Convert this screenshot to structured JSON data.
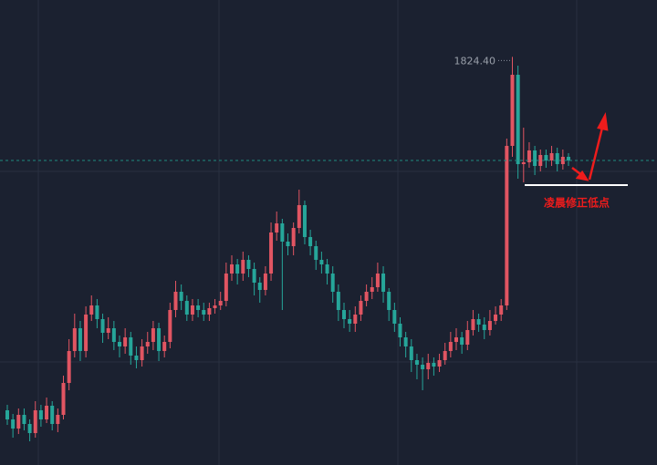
{
  "chart_data": {
    "type": "candlestick",
    "up_color": "#e15562",
    "down_color": "#26a69a",
    "ylim": [
      1712.5,
      1840
    ],
    "open": [
      1727.5,
      1725,
      1722.5,
      1726.25,
      1723.75,
      1721.25,
      1727.5,
      1725,
      1728.75,
      1723.75,
      1726.25,
      1735,
      1743.75,
      1750,
      1743.75,
      1753.75,
      1756.25,
      1752.5,
      1748.75,
      1750,
      1746.25,
      1745,
      1747.5,
      1742.5,
      1741.25,
      1745,
      1746.25,
      1750,
      1743.75,
      1746.25,
      1755,
      1760,
      1757.5,
      1753.75,
      1756.25,
      1755,
      1753.75,
      1755.5,
      1756.25,
      1757.5,
      1765,
      1767.5,
      1765,
      1768.75,
      1766.25,
      1762.5,
      1760.5,
      1765,
      1776.25,
      1778.75,
      1773.75,
      1772.5,
      1777.5,
      1783.75,
      1775,
      1772.5,
      1768.75,
      1767.5,
      1765,
      1760,
      1755,
      1752.5,
      1751.25,
      1753.75,
      1757.5,
      1760,
      1761.25,
      1765,
      1760,
      1755,
      1751.25,
      1747.5,
      1745,
      1741.25,
      1740,
      1738.75,
      1740.5,
      1739.5,
      1741.25,
      1743.75,
      1746.25,
      1747.5,
      1745.5,
      1749.5,
      1752.5,
      1751,
      1749.5,
      1752,
      1753.75,
      1756.25,
      1800,
      1819.5,
      1795,
      1795.5,
      1798.75,
      1794.5,
      1797.5,
      1796,
      1798,
      1795,
      1797
    ],
    "high": [
      1729,
      1726.5,
      1728,
      1728,
      1725,
      1730,
      1729,
      1731,
      1730,
      1728,
      1737,
      1747,
      1754,
      1752,
      1756,
      1759,
      1758,
      1754,
      1753,
      1752,
      1748,
      1750,
      1749,
      1745,
      1747,
      1749,
      1752,
      1751.5,
      1748,
      1757,
      1763,
      1762,
      1759,
      1758,
      1758,
      1757,
      1757,
      1758,
      1760,
      1768,
      1770,
      1769,
      1771,
      1770,
      1768,
      1764,
      1767,
      1779,
      1782,
      1780,
      1776,
      1779,
      1788,
      1785,
      1777,
      1774,
      1771,
      1769,
      1767,
      1762,
      1757,
      1755,
      1756,
      1759,
      1762,
      1764,
      1768,
      1767,
      1761,
      1757,
      1753,
      1749,
      1747,
      1743,
      1742,
      1743,
      1742,
      1743,
      1746,
      1749,
      1750,
      1749,
      1752,
      1755,
      1754,
      1753,
      1755,
      1756,
      1758,
      1802,
      1824.4,
      1822,
      1805,
      1801,
      1800,
      1799,
      1799,
      1800,
      1799.5,
      1799,
      1798
    ],
    "low": [
      1723.5,
      1720,
      1721,
      1722,
      1719,
      1720,
      1723,
      1724,
      1722,
      1721.5,
      1725,
      1733,
      1742,
      1741,
      1742,
      1752,
      1750,
      1746,
      1747,
      1744,
      1742,
      1743,
      1740,
      1739,
      1739.5,
      1743,
      1744,
      1741,
      1742,
      1744.5,
      1753,
      1755,
      1752,
      1752,
      1753,
      1752,
      1752,
      1754,
      1755,
      1756,
      1763,
      1762,
      1763,
      1764,
      1759,
      1757,
      1759,
      1763,
      1774,
      1755,
      1770,
      1770,
      1776,
      1773,
      1770,
      1766,
      1765,
      1762,
      1757,
      1752,
      1750,
      1749,
      1749,
      1752,
      1756,
      1758,
      1760,
      1757,
      1752,
      1749,
      1745,
      1742,
      1738,
      1736,
      1733,
      1736,
      1737,
      1738,
      1740,
      1742,
      1744,
      1743,
      1744,
      1748,
      1749,
      1747,
      1748,
      1751,
      1752,
      1755,
      1797,
      1791,
      1790,
      1794,
      1792,
      1793,
      1794,
      1794.5,
      1793,
      1793.5,
      1794.5
    ],
    "close": [
      1725,
      1722.5,
      1726.25,
      1723.75,
      1721.25,
      1727.5,
      1725,
      1728.75,
      1723.75,
      1726.25,
      1735,
      1743.75,
      1750,
      1743.75,
      1753.75,
      1756.25,
      1752.5,
      1748.75,
      1750,
      1746.25,
      1745,
      1747.5,
      1742.5,
      1741.25,
      1745,
      1746.25,
      1750,
      1743.75,
      1746.25,
      1755,
      1760,
      1757.5,
      1753.75,
      1756.25,
      1755,
      1753.75,
      1755.5,
      1756.25,
      1757.5,
      1765,
      1767.5,
      1765,
      1768.75,
      1766.25,
      1762.5,
      1760.5,
      1765,
      1776.25,
      1778.75,
      1773.75,
      1772.5,
      1777.5,
      1783.75,
      1775,
      1772.5,
      1768.75,
      1767.5,
      1765,
      1760,
      1755,
      1752.5,
      1751.25,
      1753.75,
      1757.5,
      1760,
      1761.25,
      1765,
      1760,
      1755,
      1751.25,
      1747.5,
      1745,
      1741.25,
      1740,
      1738.75,
      1740.5,
      1739.5,
      1741.25,
      1743.75,
      1746.25,
      1747.5,
      1745.5,
      1749.5,
      1752.5,
      1751,
      1749.5,
      1752,
      1753.75,
      1756.25,
      1800,
      1819.5,
      1795,
      1795.5,
      1798.75,
      1794.5,
      1797.5,
      1796,
      1798,
      1795,
      1797,
      1796
    ],
    "max_label": {
      "value": 1824.4,
      "label": "1824.40"
    },
    "support_level": 1789.25,
    "annotation": "凌晨修正低点"
  }
}
